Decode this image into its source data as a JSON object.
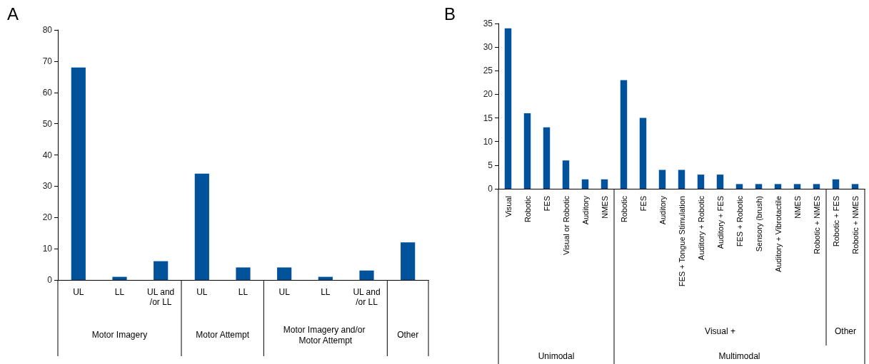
{
  "chart_data": [
    {
      "type": "bar",
      "title": "A",
      "categories": [
        "UL",
        "LL",
        "UL and/or LL",
        "UL",
        "LL",
        "UL",
        "LL",
        "UL and/or LL",
        null
      ],
      "values": [
        68,
        1,
        6,
        34,
        4,
        4,
        1,
        3,
        12
      ],
      "color": "#00529b",
      "ylim": [
        0,
        80
      ],
      "yticks": [
        0,
        10,
        20,
        30,
        40,
        50,
        60,
        70,
        80
      ],
      "grid": false,
      "annotations": [
        "Motor Imagery",
        "Motor Attempt",
        "Motor Imagery and/or Motor Attempt",
        "Other"
      ]
    },
    {
      "type": "bar",
      "title": "B",
      "categories": [
        "Visual",
        "Robotic",
        "FES",
        "Visual or Robotic",
        "Auditory",
        "NMES",
        "Robotic",
        "FES",
        "Auditory",
        "FES + Tongue Stimulation",
        "Auditory + Robotic",
        "Auditory + FES",
        "FES + Robotic",
        "Sensory (brush)",
        "Auditory + Vibrotactile",
        "NMES",
        "Robotic + NMES",
        "Robotic + FES",
        "Robotic + NMES"
      ],
      "values": [
        34,
        16,
        13,
        6,
        2,
        2,
        23,
        15,
        4,
        4,
        3,
        3,
        1,
        1,
        1,
        1,
        1,
        2,
        1
      ],
      "color": "#00529b",
      "ylim": [
        0,
        35
      ],
      "yticks": [
        0,
        5,
        10,
        15,
        20,
        25,
        30,
        35
      ],
      "grid": false,
      "annotations": [
        "Visual +",
        "Other",
        "Unimodal",
        "Multimodal"
      ]
    }
  ]
}
